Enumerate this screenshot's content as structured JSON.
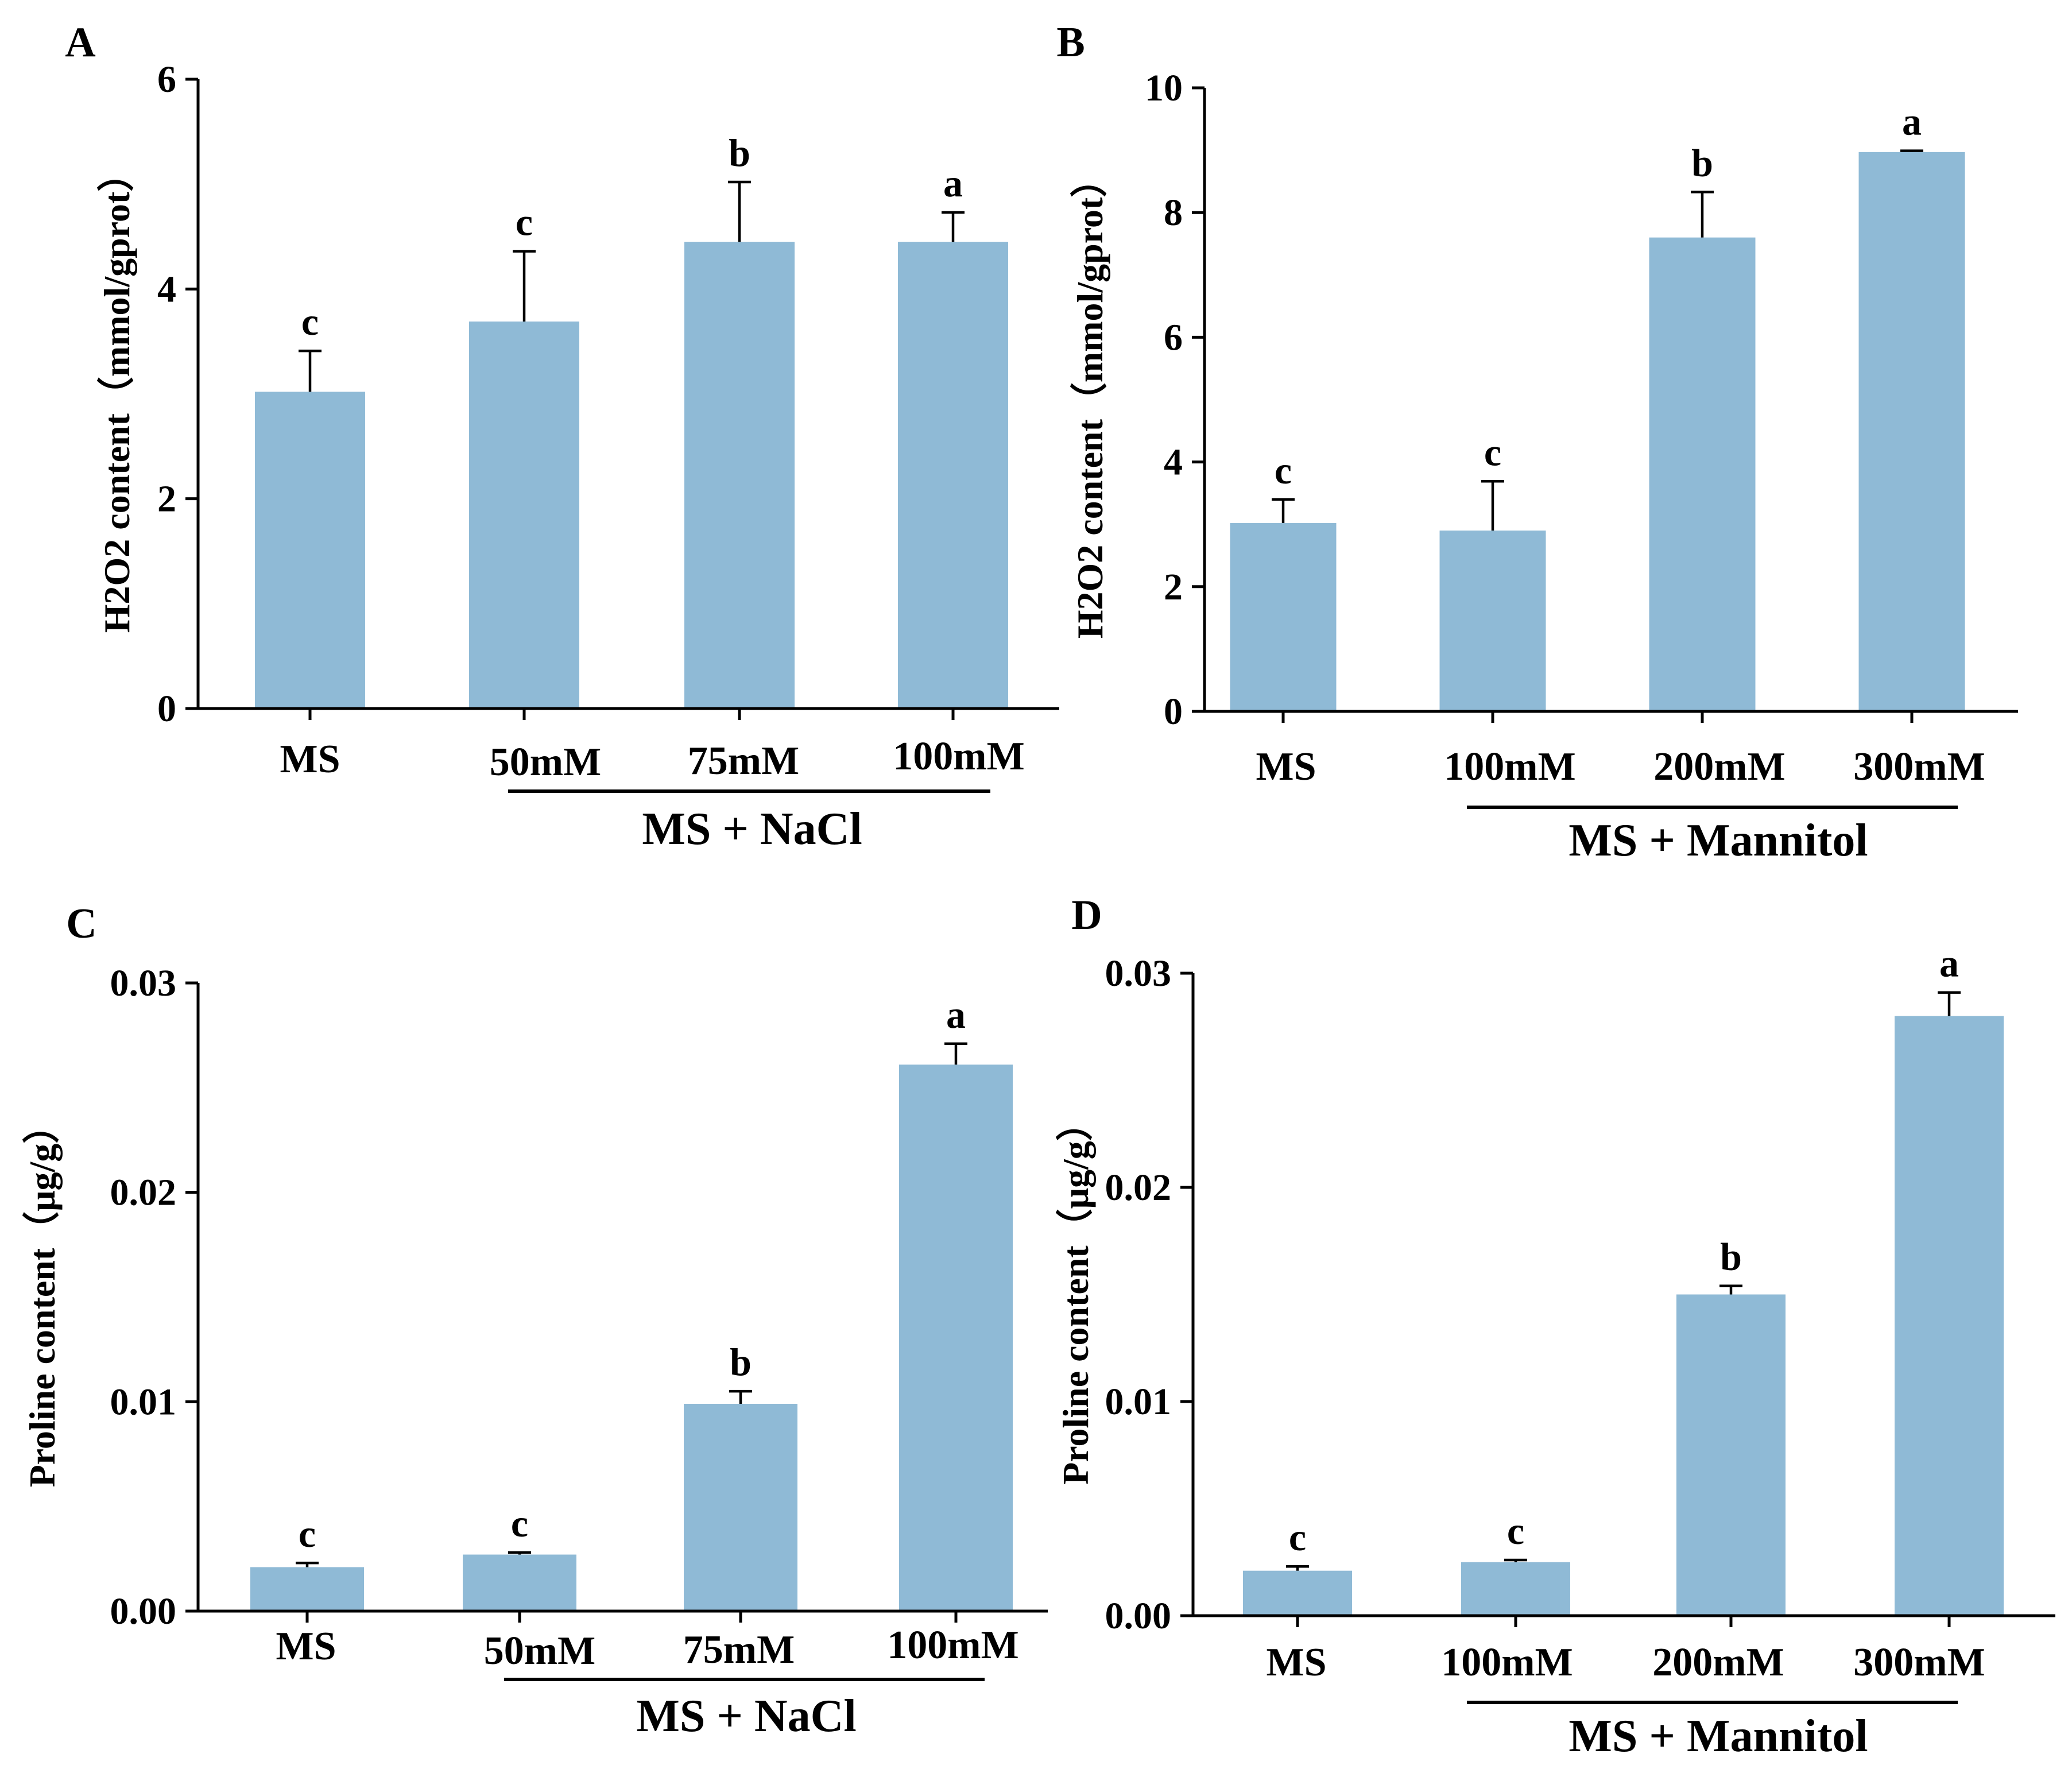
{
  "figure": {
    "bar_color": "#8fbad6",
    "axis_color": "#000000"
  },
  "chart_data": [
    {
      "panel": "A",
      "type": "bar",
      "categories": [
        "MS",
        "50mM",
        "75mM",
        "100mM"
      ],
      "values": [
        3.02,
        3.69,
        4.45,
        4.45
      ],
      "errors": [
        0.39,
        0.67,
        0.57,
        0.28
      ],
      "significance": [
        "c",
        "c",
        "b",
        "a"
      ],
      "ylabel": "H2O2 content（mmol/gprot）",
      "ylim": [
        0,
        6
      ],
      "yticks": [
        "0",
        "2",
        "4",
        "6"
      ],
      "group_label": "MS + NaCl",
      "group_span": [
        "50mM",
        "100mM"
      ]
    },
    {
      "panel": "B",
      "type": "bar",
      "categories": [
        "MS",
        "100mM",
        "200mM",
        "300mM"
      ],
      "values": [
        3.02,
        2.9,
        7.6,
        8.97
      ],
      "errors": [
        0.38,
        0.79,
        0.73,
        0.02
      ],
      "significance": [
        "c",
        "c",
        "b",
        "a"
      ],
      "ylabel": "H2O2 content（mmol/gprot）",
      "ylim": [
        0,
        10
      ],
      "yticks": [
        "0",
        "2",
        "4",
        "6",
        "8",
        "10"
      ],
      "group_label": "MS + Mannitol",
      "group_span": [
        "100mM",
        "300mM"
      ]
    },
    {
      "panel": "C",
      "type": "bar",
      "categories": [
        "MS",
        "50mM",
        "75mM",
        "100mM"
      ],
      "values": [
        0.0021,
        0.0027,
        0.0099,
        0.0261
      ],
      "errors": [
        0.0002,
        0.0001,
        0.0006,
        0.001
      ],
      "significance": [
        "c",
        "c",
        "b",
        "a"
      ],
      "ylabel": "Proline content（μg/g）",
      "ylim": [
        0,
        0.03
      ],
      "yticks": [
        "0.00",
        "0.01",
        "0.02",
        "0.03"
      ],
      "group_label": "MS + NaCl",
      "group_span": [
        "50mM",
        "100mM"
      ]
    },
    {
      "panel": "D",
      "type": "bar",
      "categories": [
        "MS",
        "100mM",
        "200mM",
        "300mM"
      ],
      "values": [
        0.0021,
        0.0025,
        0.015,
        0.028
      ],
      "errors": [
        0.0002,
        0.0001,
        0.0004,
        0.0011
      ],
      "significance": [
        "c",
        "c",
        "b",
        "a"
      ],
      "ylabel": "Proline content（μg/g）",
      "ylim": [
        0,
        0.03
      ],
      "yticks": [
        "0.00",
        "0.01",
        "0.02",
        "0.03"
      ],
      "group_label": "MS + Mannitol",
      "group_span": [
        "100mM",
        "300mM"
      ]
    }
  ]
}
